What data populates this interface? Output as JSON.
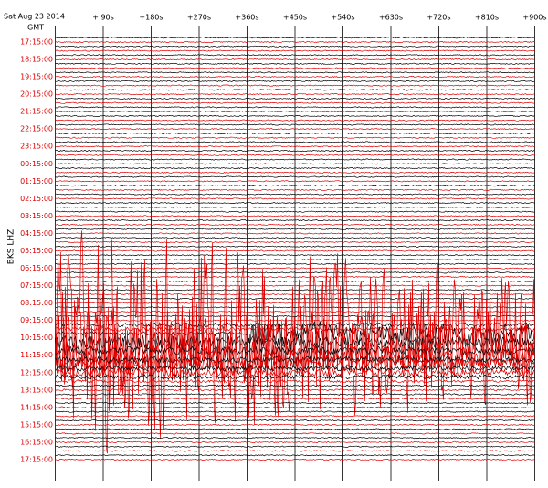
{
  "header": {
    "date": "Sat Aug 23 2014",
    "timezone": "GMT",
    "station": "BKS LHZ"
  },
  "x_labels": [
    "+ 90s",
    "+180s",
    "+270s",
    "+360s",
    "+450s",
    "+540s",
    "+630s",
    "+720s",
    "+810s",
    "+900s"
  ],
  "row_labels": [
    "17:15:00",
    "18:15:00",
    "19:15:00",
    "20:15:00",
    "21:15:00",
    "22:15:00",
    "23:15:00",
    "00:15:00",
    "01:15:00",
    "02:15:00",
    "03:15:00",
    "04:15:00",
    "05:15:00",
    "06:15:00",
    "07:15:00",
    "08:15:00",
    "09:15:00",
    "10:15:00",
    "11:15:00",
    "12:15:00",
    "13:15:00",
    "14:15:00",
    "15:15:00",
    "16:15:00",
    "17:15:00"
  ]
}
